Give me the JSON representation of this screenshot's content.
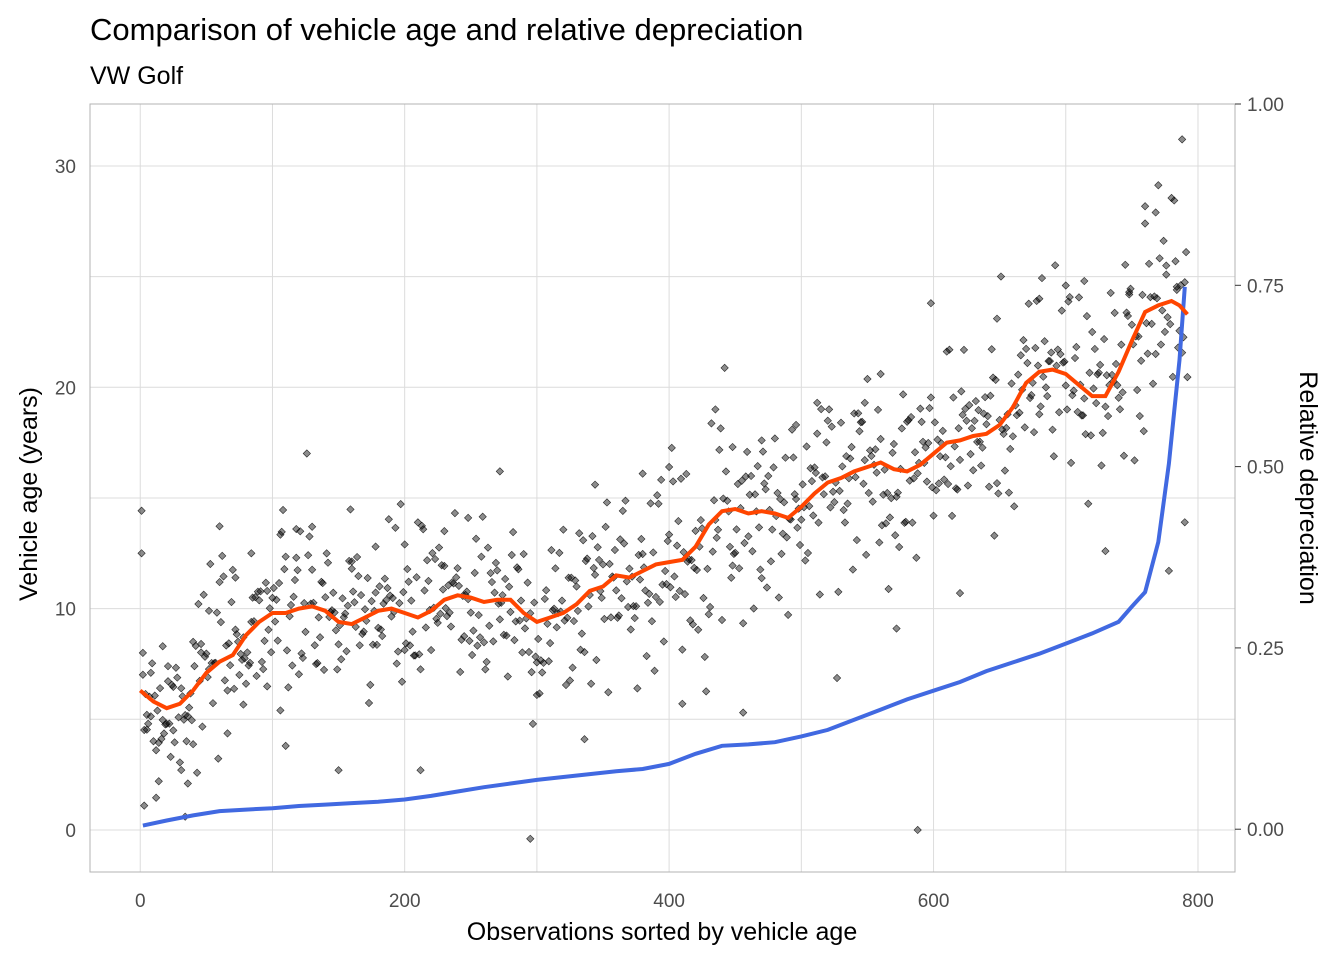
{
  "chart_data": {
    "type": "scatter",
    "title": "Comparison of vehicle age and relative depreciation",
    "subtitle": "VW Golf",
    "xlabel": "Observations sorted by vehicle age",
    "ylabel": "Vehicle age (years)",
    "y2label": "Relative depreciation",
    "xlim": [
      -38,
      828
    ],
    "ylim": [
      -1.9,
      32.8
    ],
    "y2lim": [
      -0.059,
      1.0
    ],
    "x_ticks": [
      "0",
      "200",
      "400",
      "600",
      "800"
    ],
    "y_ticks": [
      "0",
      "10",
      "20",
      "30"
    ],
    "y2_ticks": [
      "0.00",
      "0.25",
      "0.50",
      "0.75",
      "1.00"
    ],
    "grid": true,
    "colors": {
      "points": "#000000",
      "trend": "#ff4500",
      "depreciation": "#4169e1",
      "grid": "#dcdcdc",
      "border": "#b3b3b3"
    },
    "series": [
      {
        "kind": "scatter-points",
        "count": 792,
        "values_sample": [
          [
            1,
            12.5
          ],
          [
            2,
            8.0
          ],
          [
            3,
            1.1
          ],
          [
            5,
            5.2
          ],
          [
            8,
            7.1
          ],
          [
            12,
            3.6
          ],
          [
            14,
            2.2
          ],
          [
            17,
            8.3
          ],
          [
            21,
            7.4
          ],
          [
            25,
            4.5
          ],
          [
            31,
            6.4
          ],
          [
            34,
            0.6
          ],
          [
            36,
            2.1
          ],
          [
            40,
            8.5
          ],
          [
            46,
            8.4
          ],
          [
            52,
            9.9
          ],
          [
            60,
            11.2
          ],
          [
            66,
            6.3
          ],
          [
            72,
            11.4
          ],
          [
            78,
            8.7
          ],
          [
            84,
            12.5
          ],
          [
            96,
            10.8
          ],
          [
            106,
            5.4
          ],
          [
            110,
            3.8
          ],
          [
            118,
            12.3
          ],
          [
            130,
            13.7
          ],
          [
            150,
            2.7
          ],
          [
            160,
            11.8
          ],
          [
            178,
            12.8
          ],
          [
            200,
            12.9
          ],
          [
            212,
            2.7
          ],
          [
            230,
            13.5
          ],
          [
            248,
            14.1
          ],
          [
            272,
            16.2
          ],
          [
            295,
            -0.4
          ],
          [
            300,
            6.1
          ],
          [
            336,
            4.1
          ],
          [
            344,
            15.6
          ],
          [
            380,
            16.1
          ],
          [
            400,
            16.4
          ],
          [
            410,
            5.7
          ],
          [
            435,
            19.0
          ],
          [
            448,
            17.3
          ],
          [
            456,
            5.3
          ],
          [
            470,
            17.6
          ],
          [
            496,
            18.3
          ],
          [
            512,
            19.3
          ],
          [
            548,
            19.3
          ],
          [
            560,
            20.6
          ],
          [
            572,
            9.1
          ],
          [
            588,
            0.0
          ],
          [
            598,
            23.8
          ],
          [
            620,
            10.7
          ],
          [
            648,
            23.1
          ],
          [
            680,
            24.0
          ],
          [
            700,
            24.6
          ],
          [
            714,
            24.8
          ],
          [
            730,
            12.6
          ],
          [
            748,
            24.3
          ],
          [
            760,
            27.4
          ],
          [
            768,
            27.9
          ],
          [
            776,
            25.5
          ],
          [
            784,
            24.4
          ],
          [
            788,
            31.2
          ],
          [
            790,
            13.9
          ]
        ]
      },
      {
        "kind": "smoothed-trend",
        "axis": "left",
        "x": [
          0,
          10,
          20,
          30,
          40,
          50,
          60,
          70,
          80,
          90,
          100,
          110,
          120,
          130,
          140,
          150,
          160,
          170,
          180,
          190,
          200,
          210,
          220,
          230,
          240,
          250,
          260,
          270,
          280,
          290,
          300,
          310,
          320,
          330,
          340,
          350,
          360,
          370,
          380,
          390,
          400,
          410,
          420,
          430,
          440,
          450,
          460,
          470,
          480,
          490,
          500,
          510,
          520,
          530,
          540,
          550,
          560,
          570,
          580,
          590,
          600,
          610,
          620,
          630,
          640,
          650,
          660,
          670,
          680,
          690,
          700,
          710,
          720,
          730,
          740,
          750,
          760,
          770,
          780,
          786,
          792
        ],
        "values": [
          6.3,
          5.8,
          5.5,
          5.7,
          6.3,
          7.1,
          7.6,
          7.9,
          8.8,
          9.4,
          9.8,
          9.8,
          10.0,
          10.1,
          9.9,
          9.4,
          9.3,
          9.6,
          9.9,
          10.0,
          9.8,
          9.6,
          9.9,
          10.4,
          10.6,
          10.5,
          10.3,
          10.4,
          10.4,
          9.8,
          9.4,
          9.6,
          9.8,
          10.2,
          10.8,
          11.0,
          11.5,
          11.4,
          11.7,
          12.0,
          12.1,
          12.2,
          12.8,
          13.8,
          14.4,
          14.5,
          14.3,
          14.4,
          14.3,
          14.1,
          14.6,
          15.2,
          15.7,
          15.9,
          16.2,
          16.4,
          16.6,
          16.3,
          16.2,
          16.5,
          17.0,
          17.5,
          17.6,
          17.8,
          17.9,
          18.3,
          19.1,
          20.2,
          20.7,
          20.8,
          20.6,
          20.1,
          19.6,
          19.6,
          20.7,
          22.1,
          23.4,
          23.7,
          23.9,
          23.7,
          23.3
        ]
      },
      {
        "kind": "depreciation-line",
        "axis": "right",
        "x": [
          2,
          20,
          40,
          60,
          80,
          100,
          120,
          140,
          160,
          180,
          200,
          220,
          240,
          260,
          280,
          300,
          320,
          340,
          360,
          380,
          400,
          420,
          440,
          460,
          480,
          500,
          520,
          540,
          560,
          580,
          600,
          620,
          640,
          660,
          680,
          700,
          720,
          740,
          750,
          760,
          770,
          778,
          782,
          786,
          790
        ],
        "values": [
          0.005,
          0.012,
          0.019,
          0.025,
          0.027,
          0.029,
          0.032,
          0.034,
          0.036,
          0.038,
          0.041,
          0.046,
          0.052,
          0.058,
          0.063,
          0.068,
          0.072,
          0.076,
          0.08,
          0.083,
          0.09,
          0.104,
          0.115,
          0.117,
          0.12,
          0.128,
          0.137,
          0.151,
          0.165,
          0.179,
          0.191,
          0.203,
          0.218,
          0.23,
          0.242,
          0.256,
          0.27,
          0.286,
          0.307,
          0.327,
          0.396,
          0.504,
          0.576,
          0.647,
          0.748
        ]
      }
    ]
  }
}
